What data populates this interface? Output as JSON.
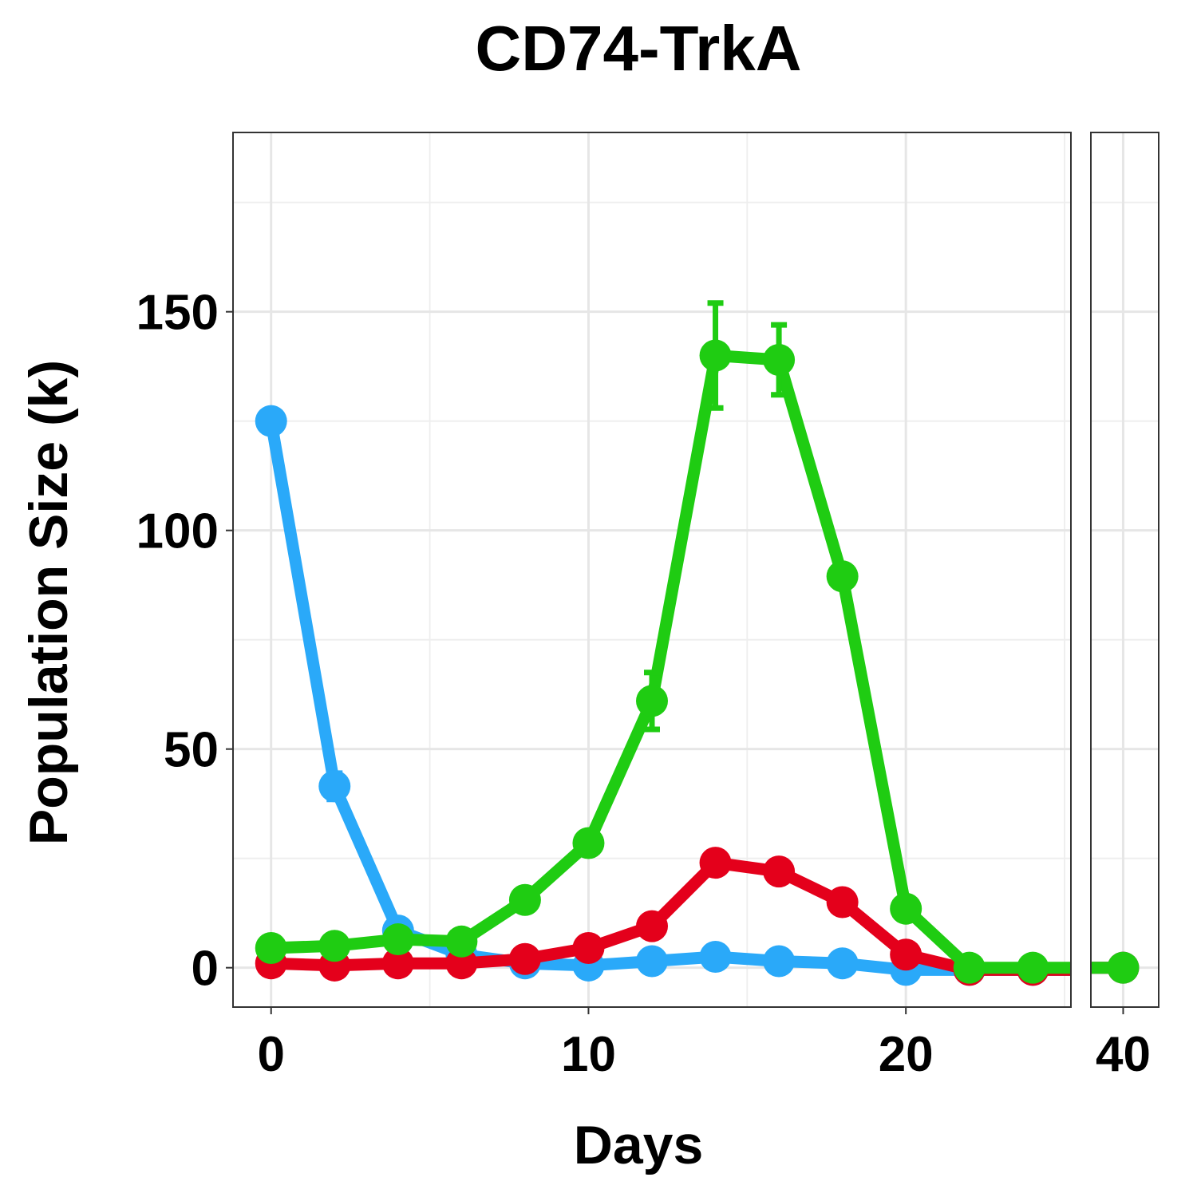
{
  "chart_data": {
    "type": "line",
    "title": "CD74-TrkA",
    "xlabel": "Days",
    "ylabel": "Population Size (k)",
    "ylim": [
      -9,
      191
    ],
    "y_ticks": [
      0,
      50,
      100,
      150
    ],
    "x_axis": {
      "broken": true,
      "panels": [
        {
          "xlim": [
            -1.2,
            25.2
          ],
          "ticks": [
            0,
            10,
            20
          ],
          "tick_labels": [
            "0",
            "10",
            "20"
          ]
        },
        {
          "xlim": [
            39.0,
            41.1
          ],
          "ticks": [
            40
          ],
          "tick_labels": [
            "40"
          ]
        }
      ]
    },
    "grid": true,
    "legend": "none",
    "x": [
      0,
      2,
      4,
      6,
      8,
      10,
      12,
      14,
      16,
      18,
      20,
      22,
      24,
      40
    ],
    "series": [
      {
        "color": "#2aa9f9",
        "values": [
          125,
          41.5,
          8.5,
          3,
          1,
          0.5,
          1.5,
          2.5,
          1.5,
          1,
          -0.5,
          -0.5,
          -0.5,
          0
        ],
        "error": [
          0,
          3,
          0,
          0,
          0,
          0,
          0,
          0,
          0,
          0,
          0,
          0,
          0,
          0
        ]
      },
      {
        "color": "#e4001b",
        "values": [
          1,
          0.5,
          1,
          1,
          2,
          4.5,
          9.5,
          24,
          22,
          15,
          3,
          -0.5,
          -0.5,
          0
        ],
        "error": [
          0,
          0,
          0,
          0,
          0,
          0,
          0,
          2,
          0,
          0,
          0,
          0,
          0,
          0
        ]
      },
      {
        "color": "#1fcc12",
        "values": [
          4.5,
          5,
          6.5,
          6,
          15.5,
          28.5,
          61,
          140,
          139,
          89.5,
          13.5,
          0,
          0,
          0
        ],
        "error": [
          0,
          0,
          0,
          0,
          0,
          0,
          6.5,
          12,
          8,
          0,
          0,
          0,
          0,
          0
        ]
      }
    ]
  }
}
